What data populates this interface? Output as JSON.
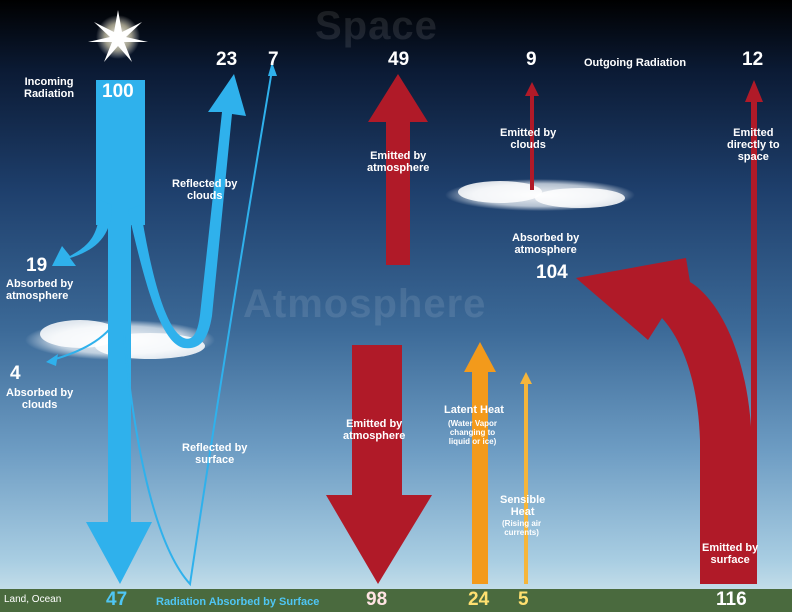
{
  "regions": {
    "space": "Space",
    "atmosphere": "Atmosphere"
  },
  "incoming": {
    "label": "Incoming\nRadiation",
    "value": "100"
  },
  "reflected_clouds": {
    "value": "23",
    "label": "Reflected by\nclouds"
  },
  "reflected_surface": {
    "value": "7",
    "label": "Reflected by\nsurface"
  },
  "absorbed_atmosphere_solar": {
    "value": "19",
    "label": "Absorbed by\natmosphere"
  },
  "absorbed_clouds": {
    "value": "4",
    "label": "Absorbed by\nclouds"
  },
  "surface_absorbed": {
    "value": "47",
    "label": "Radiation Absorbed by Surface"
  },
  "emitted_atmosphere_up": {
    "value": "49",
    "label": "Emitted by\natmosphere"
  },
  "emitted_clouds": {
    "value": "9",
    "label": "Emitted by\nclouds"
  },
  "outgoing": {
    "label": "Outgoing Radiation"
  },
  "direct_space": {
    "value": "12",
    "label": "Emitted\ndirectly to\nspace"
  },
  "absorbed_atmosphere_ir": {
    "value": "104",
    "label": "Absorbed by\natmosphere"
  },
  "emitted_atmosphere_down": {
    "value": "98",
    "label": "Emitted by\natmosphere"
  },
  "latent_heat": {
    "value": "24",
    "label": "Latent Heat",
    "sub": "(Water Vapor\nchanging to\nliquid or ice)"
  },
  "sensible_heat": {
    "value": "5",
    "label": "Sensible\nHeat",
    "sub": "(Rising air\ncurrents)"
  },
  "surface_emitted": {
    "value": "116",
    "label": "Emitted by\nsurface"
  },
  "land_label": "Land, Ocean",
  "colors": {
    "solar": "#2fb1ec",
    "infrared": "#b01a28",
    "latent": "#f39a1b",
    "sensible": "#f5b53a",
    "ground": "#4a6a3e"
  }
}
